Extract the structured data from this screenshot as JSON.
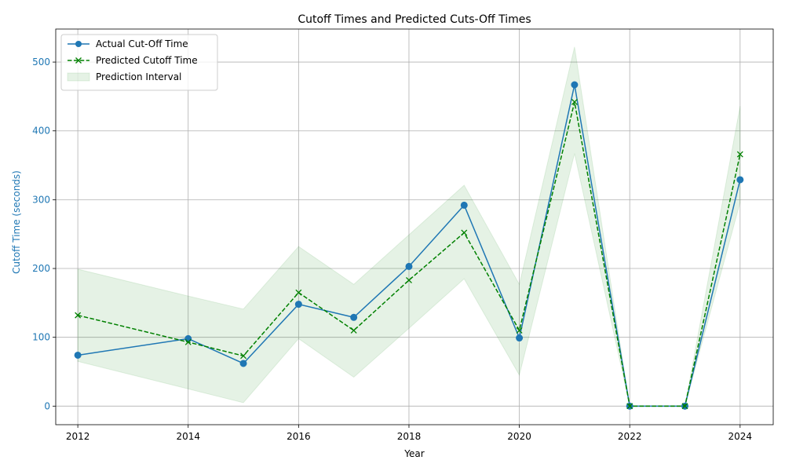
{
  "chart_data": {
    "type": "line",
    "title": "Cutoff Times and Predicted Cuts-Off Times",
    "xlabel": "Year",
    "ylabel": "Cutoff Time (seconds)",
    "x": [
      2012,
      2014,
      2015,
      2016,
      2017,
      2018,
      2019,
      2020,
      2021,
      2022,
      2023,
      2024
    ],
    "xlim": [
      2011.6,
      2024.6
    ],
    "ylim": [
      -27,
      548
    ],
    "xticks": [
      2012,
      2014,
      2016,
      2018,
      2020,
      2022,
      2024
    ],
    "yticks": [
      0,
      100,
      200,
      300,
      400,
      500
    ],
    "grid": true,
    "legend_position": "upper-left",
    "series": [
      {
        "name": "Actual Cut-Off Time",
        "style": "solid",
        "marker": "circle",
        "color": "#1f77b4",
        "values": [
          74,
          98,
          62,
          148,
          129,
          203,
          292,
          99,
          467,
          0,
          0,
          329
        ]
      },
      {
        "name": "Predicted Cutoff Time",
        "style": "dashed",
        "marker": "x",
        "color": "#008000",
        "values": [
          132,
          93,
          73,
          165,
          110,
          183,
          252,
          110,
          442,
          0,
          0,
          366
        ]
      }
    ],
    "interval": {
      "name": "Prediction Interval",
      "color": "#008000",
      "lower": [
        65,
        25,
        5,
        98,
        42,
        113,
        185,
        45,
        367,
        0,
        0,
        296
      ],
      "upper": [
        199,
        160,
        141,
        232,
        177,
        249,
        321,
        177,
        522,
        0,
        0,
        436
      ]
    },
    "colors": {
      "ylabel": "#1f77b4",
      "ytick": "#1f77b4",
      "grid": "#b0b0b0"
    }
  }
}
